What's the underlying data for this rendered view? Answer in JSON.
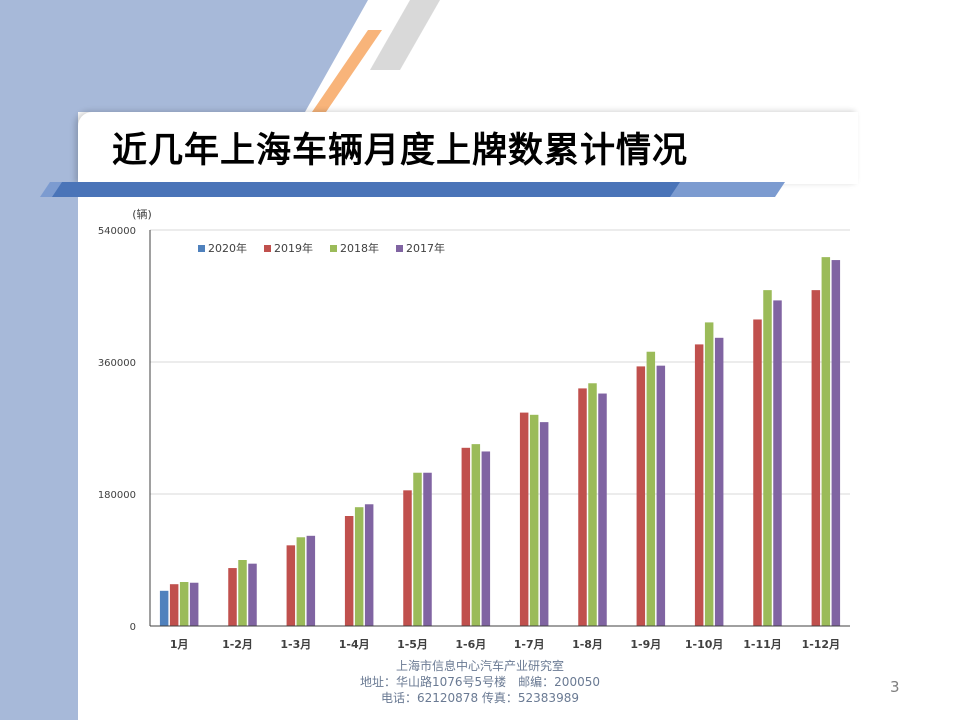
{
  "slide": {
    "title": "近几年上海车辆月度上牌数累计情况",
    "page_number": "3",
    "footer": {
      "line1": "上海市信息中心汽车产业研究室",
      "line2": "地址：华山路1076号5号楼　邮编：200050",
      "line3": "电话：62120878  传真：52383989"
    }
  },
  "colors": {
    "band": "#a7b9d9",
    "accent_orange": "#f8b47a",
    "accent_blue": "#4a74b8",
    "series_2020": "#4f81bd",
    "series_2019": "#c0504d",
    "series_2018": "#9bbb59",
    "series_2017": "#8064a2"
  },
  "chart_data": {
    "type": "bar",
    "title": "",
    "xlabel": "",
    "ylabel": "(辆)",
    "ylim": [
      0,
      540000
    ],
    "yticks": [
      0,
      180000,
      360000,
      540000
    ],
    "ytick_labels": [
      "0",
      "180000",
      "360000",
      "540000"
    ],
    "grid": true,
    "legend_position": "top-left",
    "categories": [
      "1月",
      "1-2月",
      "1-3月",
      "1-4月",
      "1-5月",
      "1-6月",
      "1-7月",
      "1-8月",
      "1-9月",
      "1-10月",
      "1-11月",
      "1-12月"
    ],
    "series": [
      {
        "name": "2020年",
        "color": "#4f81bd",
        "values": [
          48000,
          null,
          null,
          null,
          null,
          null,
          null,
          null,
          null,
          null,
          null,
          null
        ]
      },
      {
        "name": "2019年",
        "color": "#c0504d",
        "values": [
          57000,
          79000,
          110000,
          150000,
          185000,
          243000,
          291000,
          324000,
          354000,
          384000,
          418000,
          458000
        ]
      },
      {
        "name": "2018年",
        "color": "#9bbb59",
        "values": [
          60000,
          90000,
          121000,
          162000,
          209000,
          248000,
          288000,
          331000,
          374000,
          414000,
          458000,
          503000
        ]
      },
      {
        "name": "2017年",
        "color": "#8064a2",
        "values": [
          59000,
          85000,
          123000,
          166000,
          209000,
          238000,
          278000,
          317000,
          355000,
          393000,
          444000,
          499000
        ]
      }
    ]
  }
}
